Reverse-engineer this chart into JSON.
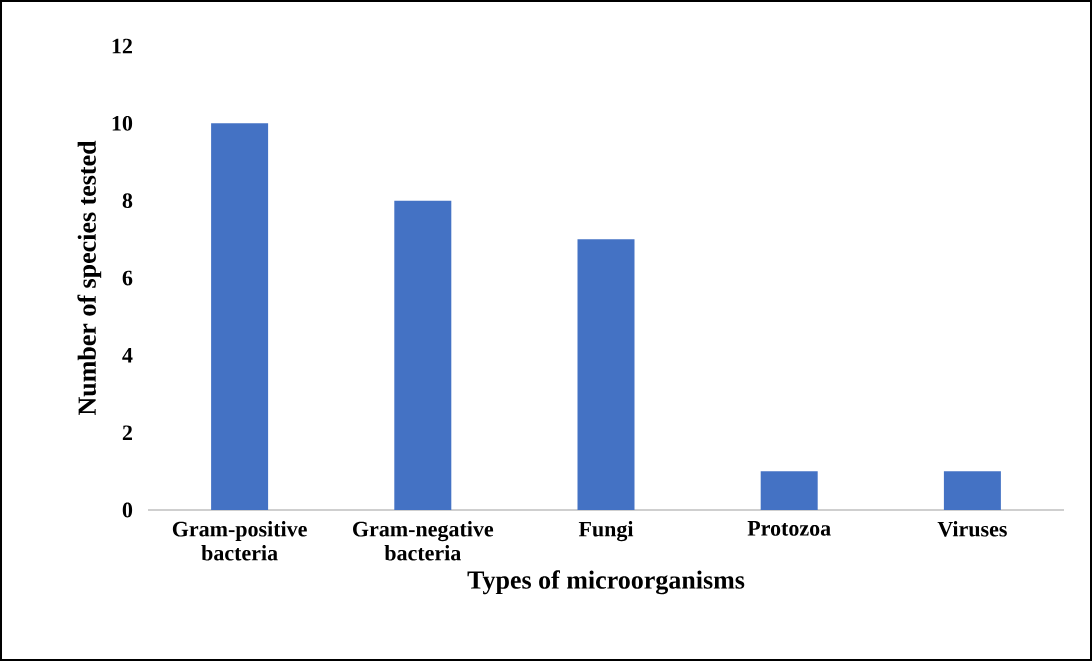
{
  "chart_data": {
    "type": "bar",
    "xlabel": "Types of microorganisms",
    "ylabel": "Number of species tested",
    "categories": [
      "Gram-positive bacteria",
      "Gram-negative bacteria",
      "Fungi",
      "Protozoa",
      "Viruses"
    ],
    "values": [
      10,
      8,
      7,
      1,
      1
    ],
    "color": "#4472c4",
    "ylim": [
      0,
      12
    ],
    "yticks": [
      0,
      2,
      4,
      6,
      8,
      10,
      12
    ]
  }
}
